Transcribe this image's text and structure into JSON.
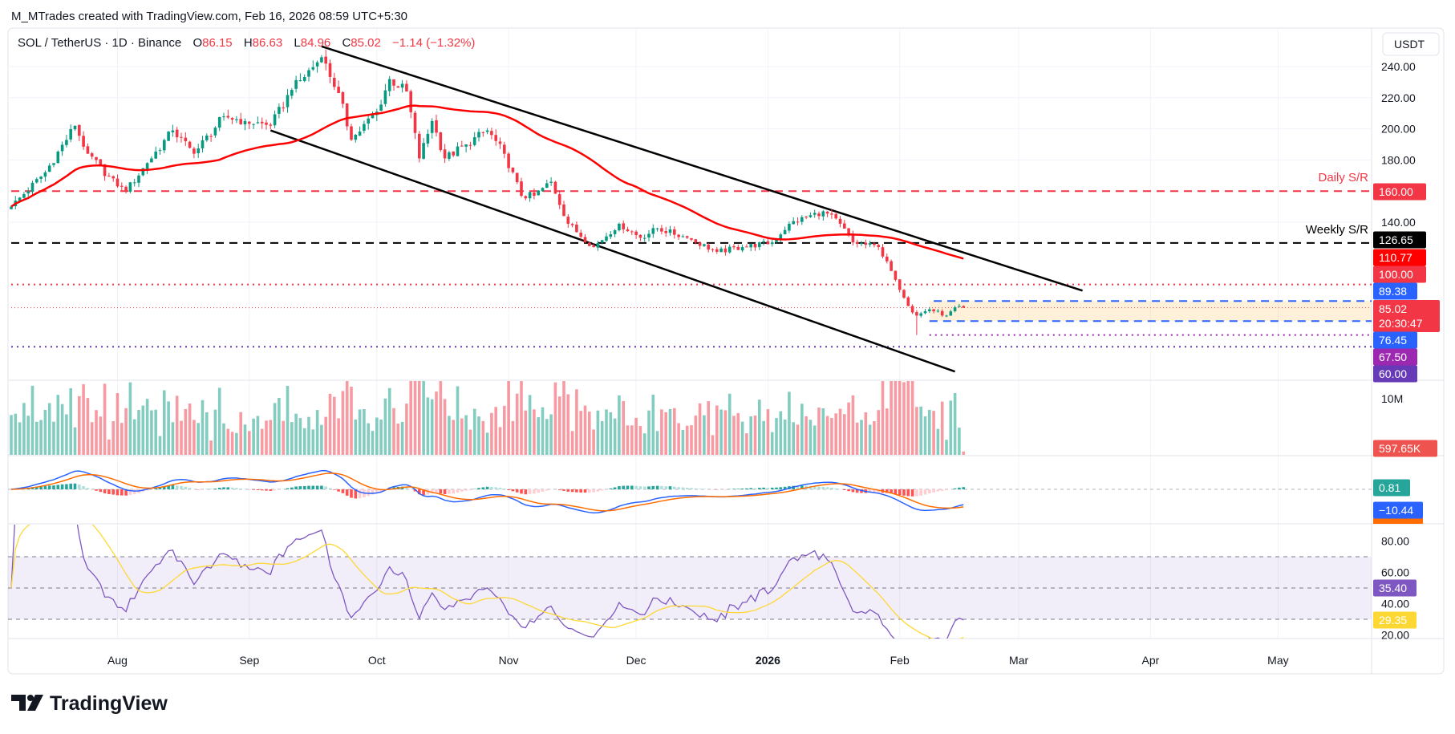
{
  "header": {
    "attribution": "M_MTrades created with TradingView.com, Feb 16, 2026 08:59 UTC+5:30"
  },
  "legend": {
    "symbol": "SOL / TetherUS · 1D · Binance",
    "o_label": "O",
    "open": "86.15",
    "h_label": "H",
    "high": "86.63",
    "l_label": "L",
    "low": "84.96",
    "c_label": "C",
    "close": "85.02",
    "change": "−1.14 (−1.32%)"
  },
  "currency": "USDT",
  "branding": "TradingView",
  "colors": {
    "up": "#089981",
    "down": "#f23645",
    "ma": "#ff0000",
    "macd": "#2962ff",
    "signal": "#ff6d00",
    "rsi": "#7e57c2",
    "rsi_ma": "#fdd835"
  },
  "chart_data": {
    "type": "candlestick",
    "title": "SOL / TetherUS · 1D · Binance",
    "ylim": [
      39,
      265
    ],
    "price_ticks": [
      "240.00",
      "220.00",
      "200.00",
      "180.00",
      "140.00"
    ],
    "price_tick_values": [
      240,
      220,
      200,
      180,
      140
    ],
    "time_ticks": [
      {
        "label": "Aug",
        "date": "2025-08-01"
      },
      {
        "label": "Sep",
        "date": "2025-09-01"
      },
      {
        "label": "Oct",
        "date": "2025-10-01"
      },
      {
        "label": "Nov",
        "date": "2025-11-01"
      },
      {
        "label": "Dec",
        "date": "2025-12-01"
      },
      {
        "label": "2026",
        "date": "2026-01-01",
        "bold": true
      },
      {
        "label": "Feb",
        "date": "2026-02-01"
      },
      {
        "label": "Mar",
        "date": "2026-03-01"
      },
      {
        "label": "Apr",
        "date": "2026-04-01"
      },
      {
        "label": "May",
        "date": "2026-05-01"
      }
    ],
    "close_anchors": [
      [
        "2025-07-07",
        150
      ],
      [
        "2025-07-15",
        172
      ],
      [
        "2025-07-22",
        202
      ],
      [
        "2025-07-25",
        184
      ],
      [
        "2025-08-01",
        163
      ],
      [
        "2025-08-03",
        160
      ],
      [
        "2025-08-08",
        178
      ],
      [
        "2025-08-14",
        199
      ],
      [
        "2025-08-19",
        184
      ],
      [
        "2025-08-26",
        208
      ],
      [
        "2025-08-31",
        205
      ],
      [
        "2025-09-06",
        202
      ],
      [
        "2025-09-11",
        225
      ],
      [
        "2025-09-18",
        246
      ],
      [
        "2025-09-22",
        223
      ],
      [
        "2025-09-25",
        193
      ],
      [
        "2025-10-01",
        211
      ],
      [
        "2025-10-04",
        232
      ],
      [
        "2025-10-08",
        224
      ],
      [
        "2025-10-11",
        181
      ],
      [
        "2025-10-14",
        205
      ],
      [
        "2025-10-17",
        181
      ],
      [
        "2025-10-22",
        190
      ],
      [
        "2025-10-27",
        199
      ],
      [
        "2025-10-31",
        184
      ],
      [
        "2025-11-04",
        157
      ],
      [
        "2025-11-07",
        157
      ],
      [
        "2025-11-11",
        166
      ],
      [
        "2025-11-15",
        139
      ],
      [
        "2025-11-21",
        124
      ],
      [
        "2025-11-27",
        139
      ],
      [
        "2025-12-02",
        130
      ],
      [
        "2025-12-06",
        136
      ],
      [
        "2025-12-13",
        130
      ],
      [
        "2025-12-20",
        121
      ],
      [
        "2025-12-26",
        124
      ],
      [
        "2026-01-02",
        127
      ],
      [
        "2026-01-06",
        139
      ],
      [
        "2026-01-14",
        147
      ],
      [
        "2026-01-18",
        139
      ],
      [
        "2026-01-21",
        127
      ],
      [
        "2026-01-27",
        124
      ],
      [
        "2026-01-31",
        103
      ],
      [
        "2026-02-04",
        82
      ],
      [
        "2026-02-05",
        80
      ],
      [
        "2026-02-08",
        84
      ],
      [
        "2026-02-12",
        80
      ],
      [
        "2026-02-15",
        86.15
      ],
      [
        "2026-02-16",
        85.02
      ]
    ],
    "last_candle": {
      "open": 86.15,
      "high": 86.63,
      "low": 84.96,
      "close": 85.02
    },
    "notable_low": {
      "date": "2026-02-05",
      "price": 67.5
    },
    "levels": [
      {
        "price": 160,
        "label": "Daily S/R",
        "badge": "160.00",
        "style": "dashed",
        "color": "#f23645"
      },
      {
        "price": 126.65,
        "label": "Weekly S/R",
        "badge": "126.65",
        "style": "dashed",
        "color": "#000000"
      },
      {
        "price": 100,
        "badge": "100.00",
        "style": "dotted",
        "color": "#f23645"
      },
      {
        "price": 89.38,
        "badge": "89.38",
        "style": "dashed",
        "color": "#2962ff",
        "from": "2026-02-09"
      },
      {
        "price": 76.45,
        "badge": "76.45",
        "style": "dashed",
        "color": "#2962ff",
        "from": "2026-02-08"
      },
      {
        "price": 67.5,
        "badge": "67.50",
        "style": "dotted",
        "color": "#9c27b0",
        "from": "2026-02-08"
      },
      {
        "price": 60,
        "badge": "60.00",
        "style": "dotted",
        "color": "#673ab7"
      }
    ],
    "zone": {
      "from": "2026-02-08",
      "low": 76.45,
      "high": 89.38
    },
    "trendlines": [
      {
        "name": "upper-channel",
        "p1": [
          "2025-09-18",
          253
        ],
        "p2": [
          "2026-03-16",
          96
        ]
      },
      {
        "name": "lower-channel",
        "p1": [
          "2025-09-06",
          199
        ],
        "p2": [
          "2026-02-14",
          44
        ]
      }
    ],
    "moving_average": {
      "period": 50,
      "value": "110.77"
    },
    "current_price": {
      "value": "85.02",
      "countdown": "20:30:47"
    },
    "volume": {
      "tick": "10M",
      "last": "597.65K"
    },
    "macd": {
      "histogram": "0.81",
      "macd": "−10.44"
    },
    "rsi": {
      "value": "35.40",
      "ma": "29.35",
      "ticks": [
        "80.00",
        "60.00",
        "40.00",
        "20.00"
      ],
      "tick_values": [
        80,
        60,
        40,
        20
      ],
      "bands": [
        70,
        50,
        30
      ]
    }
  }
}
